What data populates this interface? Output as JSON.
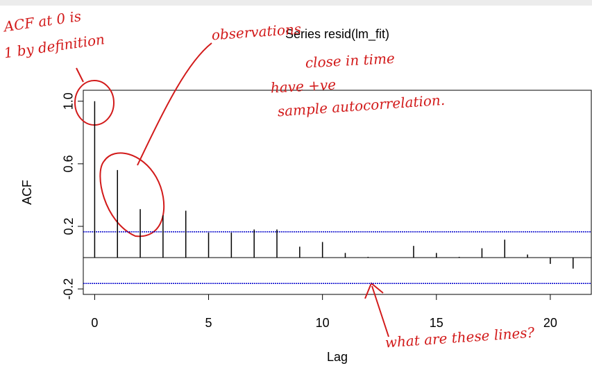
{
  "chart_data": {
    "type": "acf",
    "title": "Series  resid(lm_fit)",
    "x_label": "Lag",
    "y_label": "ACF",
    "x": [
      0,
      1,
      2,
      3,
      4,
      5,
      6,
      7,
      8,
      9,
      10,
      11,
      12,
      13,
      14,
      15,
      16,
      17,
      18,
      19,
      20,
      21
    ],
    "values": [
      1.0,
      0.56,
      0.31,
      0.27,
      0.3,
      0.16,
      0.16,
      0.18,
      0.18,
      0.07,
      0.1,
      0.03,
      0.005,
      0.0,
      0.075,
      0.03,
      0.005,
      0.06,
      0.115,
      0.02,
      -0.04,
      -0.07
    ],
    "color": "#000000",
    "confidence_bounds": {
      "values": [
        0.165,
        -0.165
      ],
      "color": "#0000cc"
    },
    "xlim": [
      -0.5,
      21.8
    ],
    "ylim": [
      -0.235,
      1.07
    ],
    "xticks": [
      0,
      5,
      10,
      15,
      20
    ],
    "yticks": [
      -0.2,
      0.2,
      0.6,
      {
        "value": 1,
        "label": "1.0"
      }
    ],
    "annotations": [
      [
        "ACF at 0 is",
        "1 by definition"
      ],
      [
        "observations",
        "close in time",
        "have +ve",
        "sample autocorrelation."
      ],
      [
        "what are these lines?"
      ]
    ]
  }
}
